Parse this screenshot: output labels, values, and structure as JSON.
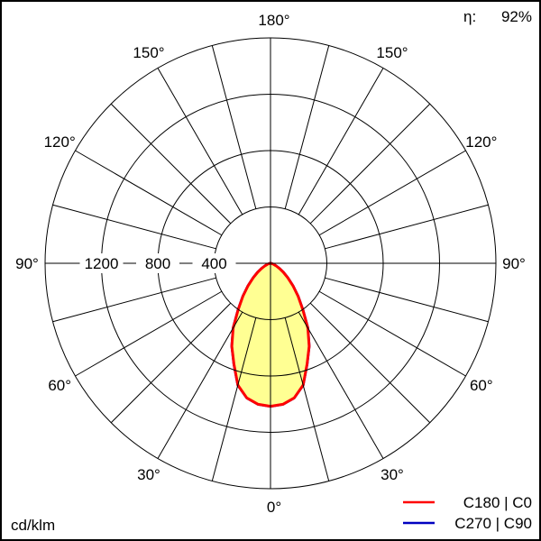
{
  "chart_data": {
    "type": "polar",
    "unit_label": "cd/klm",
    "efficiency": {
      "symbol": "η:",
      "value": "92%"
    },
    "radial_ticks": [
      400,
      800,
      1200,
      1600
    ],
    "radial_tick_labels": [
      "400",
      "800",
      "1200"
    ],
    "rmax": 1600,
    "angle_labels": [
      "0°",
      "30°",
      "60°",
      "90°",
      "120°",
      "150°",
      "180°"
    ],
    "angle_label_values": [
      0,
      30,
      60,
      90,
      120,
      150,
      180
    ],
    "grid_angle_step": 15,
    "fill_color": "#ffff80",
    "angles": [
      0,
      5,
      10,
      15,
      20,
      25,
      30,
      35,
      40,
      45,
      50,
      55,
      60,
      65,
      70,
      75,
      80,
      85,
      90
    ],
    "series": [
      {
        "name": "C180 | C0",
        "color": "#ff0000",
        "values": [
          1015,
          1005,
          970,
          895,
          760,
          650,
          530,
          400,
          305,
          225,
          160,
          112,
          74,
          45,
          25,
          12,
          5,
          1,
          0
        ]
      },
      {
        "name": "C270 | C90",
        "color": "#0000c0",
        "values": [
          1015,
          1005,
          970,
          895,
          760,
          650,
          530,
          400,
          305,
          225,
          160,
          112,
          74,
          45,
          25,
          12,
          5,
          1,
          0
        ]
      }
    ]
  }
}
